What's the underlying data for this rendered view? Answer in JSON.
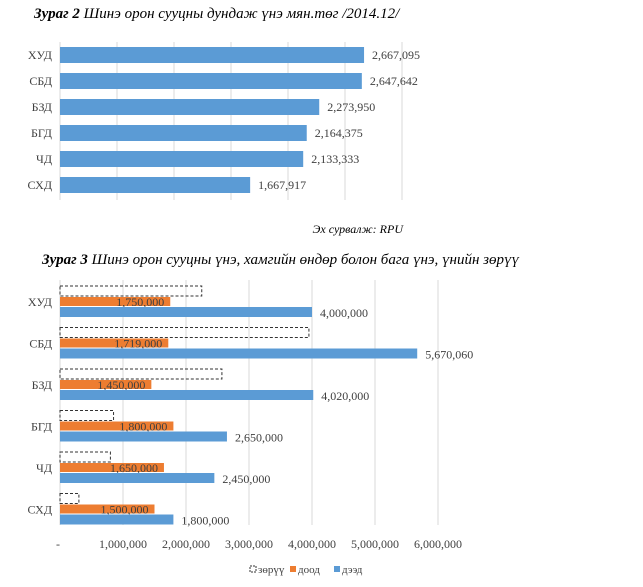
{
  "chart_data": [
    {
      "type": "bar",
      "orientation": "horizontal",
      "title_bold": "Зураг 2",
      "title": "Шинэ орон сууцны дундаж үнэ мян.төг /2014.12/",
      "categories": [
        "ХУД",
        "СБД",
        "БЗД",
        "БГД",
        "ЧД",
        "СХД"
      ],
      "values": [
        2667095,
        2647642,
        2273950,
        2164375,
        2133333,
        1667917
      ],
      "labels": [
        "2,667,095",
        "2,647,642",
        "2,273,950",
        "2,164,375",
        "2,133,333",
        "1,667,917"
      ],
      "xlim": [
        0,
        3000000
      ],
      "grid": true,
      "color": "#5b9bd5",
      "source": "Эх сурвалж: RPU"
    },
    {
      "type": "bar",
      "orientation": "horizontal",
      "title_bold": "Зураг 3",
      "title": "Шинэ орон сууцны үнэ, хамгийн өндөр болон бага үнэ, үнийн зөрүү",
      "categories": [
        "ХУД",
        "СБД",
        "БЗД",
        "БГД",
        "ЧД",
        "СХД"
      ],
      "series": [
        {
          "name": "зөрүү",
          "values": [
            2250000,
            3951060,
            2570000,
            850000,
            800000,
            300000
          ],
          "style": "dashed-outline"
        },
        {
          "name": "доод",
          "values": [
            1750000,
            1719000,
            1450000,
            1800000,
            1650000,
            1500000
          ],
          "labels": [
            "1,750,000",
            "1,719,000",
            "1,450,000",
            "1,800,000",
            "1,650,000",
            "1,500,000"
          ],
          "color": "#ed7d31"
        },
        {
          "name": "дээд",
          "values": [
            4000000,
            5670060,
            4020000,
            2650000,
            2450000,
            1800000
          ],
          "labels": [
            "4,000,000",
            "5,670,060",
            "4,020,000",
            "2,650,000",
            "2,450,000",
            "1,800,000"
          ],
          "color": "#5b9bd5"
        }
      ],
      "xticks": [
        "-",
        "1,000,000",
        "2,000,000",
        "3,000,000",
        "4,000,000",
        "5,000,000",
        "6,000,000"
      ],
      "xlim": [
        0,
        6000000
      ],
      "grid": true,
      "legend": "bottom"
    }
  ]
}
